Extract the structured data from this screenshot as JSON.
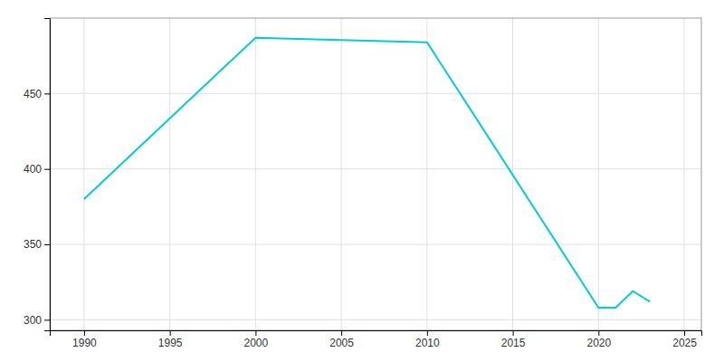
{
  "chart_data": {
    "type": "line",
    "x": [
      1990,
      2000,
      2010,
      2020,
      2021,
      2022,
      2023
    ],
    "values": [
      380,
      487,
      484,
      308,
      308,
      319,
      312
    ],
    "color": "#00CED1",
    "xlim": [
      1988,
      2026
    ],
    "ylim": [
      293,
      500
    ],
    "xticks": [
      1990,
      1995,
      2000,
      2005,
      2010,
      2015,
      2020,
      2025
    ],
    "yticks": [
      300,
      350,
      400,
      450
    ],
    "grid": true
  }
}
